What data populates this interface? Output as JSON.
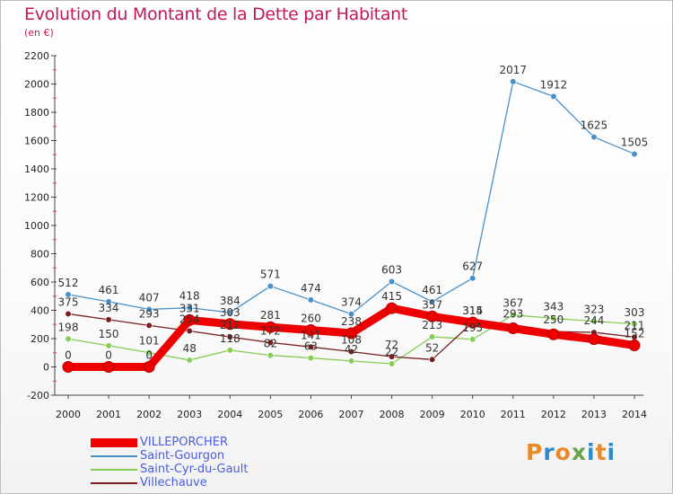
{
  "title": "Evolution du Montant de la Dette par Habitant",
  "subtitle": "(en €)",
  "logo": {
    "text": "Proxiti",
    "colors": [
      "#e8892b",
      "#2e8bc9",
      "#e8892b",
      "#6aa34a",
      "#2e8bc9",
      "#e8892b",
      "#2e8bc9"
    ]
  },
  "chart_data": {
    "type": "line",
    "title": "Evolution du Montant de la Dette par Habitant",
    "unit": "(en €)",
    "x": [
      "2000",
      "2001",
      "2002",
      "2003",
      "2004",
      "2005",
      "2006",
      "2007",
      "2008",
      "2009",
      "2010",
      "2011",
      "2012",
      "2013",
      "2014"
    ],
    "ylim": [
      -200,
      2200
    ],
    "yticks": [
      -200,
      0,
      200,
      400,
      600,
      800,
      1000,
      1200,
      1400,
      1600,
      1800,
      2000,
      2200
    ],
    "grid": false,
    "legend": "bottom-left",
    "series": [
      {
        "name": "VILLEPORCHER",
        "color": "#ee0000",
        "values": [
          0,
          0,
          0,
          331,
          303,
          281,
          260,
          238,
          415,
          357,
          314,
          273,
          230,
          196,
          152
        ],
        "labels": [
          "0",
          "0",
          "0",
          "331",
          "303",
          "281",
          "260",
          "238",
          "415",
          "357",
          "314",
          "",
          "",
          "",
          "152"
        ]
      },
      {
        "name": "Saint-Gourgon",
        "color": "#4a90c8",
        "values": [
          512,
          461,
          407,
          418,
          384,
          571,
          474,
          374,
          603,
          461,
          627,
          2017,
          1912,
          1625,
          1505
        ],
        "labels": [
          "512",
          "461",
          "407",
          "418",
          "384",
          "571",
          "474",
          "374",
          "603",
          "461",
          "627",
          "2017",
          "1912",
          "1625",
          "1505"
        ]
      },
      {
        "name": "Saint-Cyr-du-Gault",
        "color": "#88cc55",
        "values": [
          198,
          150,
          101,
          48,
          118,
          82,
          63,
          42,
          22,
          213,
          195,
          367,
          343,
          323,
          303
        ],
        "labels": [
          "198",
          "150",
          "101",
          "48",
          "118",
          "82",
          "63",
          "42",
          "22",
          "213",
          "195",
          "367",
          "343",
          "323",
          "303"
        ]
      },
      {
        "name": "Villechauve",
        "color": "#7a1f1f",
        "values": [
          375,
          334,
          293,
          254,
          212,
          172,
          141,
          108,
          72,
          52,
          315,
          293,
          250,
          244,
          211
        ],
        "labels": [
          "375",
          "334",
          "293",
          "254",
          "212",
          "172",
          "141",
          "108",
          "72",
          "52",
          "315",
          "293",
          "250",
          "244",
          "211"
        ]
      }
    ]
  }
}
